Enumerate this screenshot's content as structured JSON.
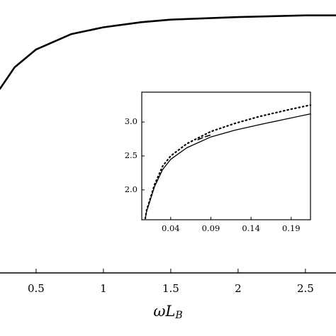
{
  "chart_data": [
    {
      "type": "line",
      "xlabel": [
        "ωL",
        "B"
      ],
      "xlim": [
        0.232,
        2.727
      ],
      "ylim": [
        1.0,
        4.2
      ],
      "xticks": [
        0.5,
        1,
        1.5,
        2,
        2.5
      ],
      "frame": false,
      "series": [
        {
          "color": "#000000",
          "style": "solid",
          "width": 2.6,
          "x": [
            0.232,
            0.34,
            0.5,
            0.76,
            1,
            1.28,
            1.5,
            2,
            2.5,
            2.727
          ],
          "values": [
            3.16,
            3.41,
            3.62,
            3.8,
            3.88,
            3.94,
            3.97,
            4.0,
            4.02,
            4.02
          ]
        }
      ]
    },
    {
      "type": "line",
      "xlim": [
        0.004,
        0.214
      ],
      "ylim": [
        1.56,
        3.44
      ],
      "xticks": [
        0.04,
        0.09,
        0.14,
        0.19
      ],
      "yticks": [
        {
          "value": 2,
          "label": "2.0"
        },
        2.5,
        {
          "value": 3,
          "label": "3.0"
        }
      ],
      "frame": true,
      "series": [
        {
          "color": "#000000",
          "style": "solid",
          "width": 1.3,
          "x": [
            0.0084,
            0.01,
            0.02,
            0.03,
            0.04,
            0.06,
            0.09,
            0.12,
            0.15,
            0.19,
            0.214
          ],
          "values": [
            1.58,
            1.68,
            2.05,
            2.3,
            2.45,
            2.62,
            2.78,
            2.88,
            2.96,
            3.06,
            3.12
          ]
        },
        {
          "color": "#000000",
          "style": "dotted",
          "width": 2.2,
          "x": [
            0.0084,
            0.01,
            0.02,
            0.03,
            0.04,
            0.06,
            0.09,
            0.12,
            0.15,
            0.19,
            0.214
          ],
          "values": [
            1.58,
            1.7,
            2.08,
            2.35,
            2.5,
            2.68,
            2.86,
            2.98,
            3.08,
            3.19,
            3.25
          ]
        },
        {
          "color": "#000000",
          "style": "dashed",
          "width": 1.6,
          "x": [
            0.074,
            0.082,
            0.09
          ],
          "values": [
            2.74,
            2.78,
            2.81
          ]
        }
      ]
    }
  ]
}
